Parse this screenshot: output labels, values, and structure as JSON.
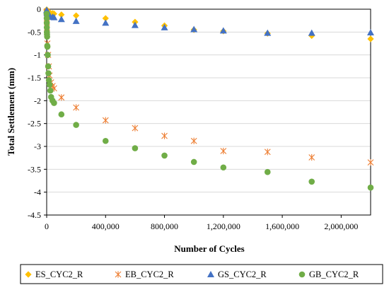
{
  "chart_data": {
    "type": "scatter",
    "title": "",
    "xlabel": "Number of Cycles",
    "ylabel": "Total Settlement (mm)",
    "xlim": [
      0,
      2200000
    ],
    "ylim": [
      -4.5,
      0
    ],
    "xticks": [
      0,
      400000,
      800000,
      1200000,
      1600000,
      2000000
    ],
    "xtick_labels": [
      "0",
      "400,000",
      "800,000",
      "1,200,000",
      "1,600,000",
      "2,000,000"
    ],
    "yticks": [
      0,
      -0.5,
      -1,
      -1.5,
      -2,
      -2.5,
      -3,
      -3.5,
      -4,
      -4.5
    ],
    "ytick_labels": [
      "0",
      "-0.5",
      "-1",
      "-1.5",
      "-2",
      "-2.5",
      "-3",
      "-3.5",
      "-4",
      "-4.5"
    ],
    "grid": "horizontal",
    "legend_position": "bottom",
    "series": [
      {
        "name": "ES_CYC2_R",
        "marker": "diamond",
        "color": "#FFC000",
        "points": [
          [
            100,
            -0.01
          ],
          [
            500,
            -0.02
          ],
          [
            1000,
            -0.03
          ],
          [
            2000,
            -0.04
          ],
          [
            5000,
            -0.05
          ],
          [
            10000,
            -0.06
          ],
          [
            20000,
            -0.07
          ],
          [
            40000,
            -0.09
          ],
          [
            50000,
            -0.1
          ],
          [
            100000,
            -0.12
          ],
          [
            200000,
            -0.14
          ],
          [
            400000,
            -0.2
          ],
          [
            600000,
            -0.28
          ],
          [
            800000,
            -0.36
          ],
          [
            1000000,
            -0.45
          ],
          [
            1200000,
            -0.48
          ],
          [
            1500000,
            -0.53
          ],
          [
            1800000,
            -0.58
          ],
          [
            2200000,
            -0.65
          ]
        ]
      },
      {
        "name": "EB_CYC2_R",
        "marker": "asterisk",
        "color": "#ED7D31",
        "points": [
          [
            100,
            -0.05
          ],
          [
            1000,
            -0.2
          ],
          [
            2000,
            -0.4
          ],
          [
            5000,
            -0.75
          ],
          [
            10000,
            -1.0
          ],
          [
            15000,
            -1.25
          ],
          [
            20000,
            -1.45
          ],
          [
            30000,
            -1.6
          ],
          [
            40000,
            -1.68
          ],
          [
            50000,
            -1.73
          ],
          [
            100000,
            -1.93
          ],
          [
            200000,
            -2.15
          ],
          [
            400000,
            -2.43
          ],
          [
            600000,
            -2.6
          ],
          [
            800000,
            -2.77
          ],
          [
            1000000,
            -2.88
          ],
          [
            1200000,
            -3.1
          ],
          [
            1500000,
            -3.12
          ],
          [
            1800000,
            -3.24
          ],
          [
            2200000,
            -3.35
          ]
        ]
      },
      {
        "name": "GS_CYC2_R",
        "marker": "triangle",
        "color": "#4472C4",
        "points": [
          [
            100,
            -0.02
          ],
          [
            1000,
            -0.05
          ],
          [
            2000,
            -0.08
          ],
          [
            5000,
            -0.1
          ],
          [
            10000,
            -0.12
          ],
          [
            20000,
            -0.14
          ],
          [
            40000,
            -0.17
          ],
          [
            50000,
            -0.18
          ],
          [
            100000,
            -0.22
          ],
          [
            200000,
            -0.26
          ],
          [
            400000,
            -0.3
          ],
          [
            600000,
            -0.35
          ],
          [
            800000,
            -0.4
          ],
          [
            1000000,
            -0.44
          ],
          [
            1200000,
            -0.47
          ],
          [
            1500000,
            -0.52
          ],
          [
            1800000,
            -0.52
          ],
          [
            2200000,
            -0.51
          ]
        ]
      },
      {
        "name": "GB_CYC2_R",
        "marker": "circle",
        "color": "#70AD47",
        "points": [
          [
            100,
            -0.1
          ],
          [
            300,
            -0.2
          ],
          [
            600,
            -0.3
          ],
          [
            1000,
            -0.4
          ],
          [
            1500,
            -0.5
          ],
          [
            2000,
            -0.55
          ],
          [
            3000,
            -0.6
          ],
          [
            4000,
            -0.8
          ],
          [
            5000,
            -0.82
          ],
          [
            7000,
            -1.0
          ],
          [
            10000,
            -1.25
          ],
          [
            12000,
            -1.4
          ],
          [
            15000,
            -1.55
          ],
          [
            20000,
            -1.65
          ],
          [
            25000,
            -1.78
          ],
          [
            30000,
            -1.92
          ],
          [
            40000,
            -2.0
          ],
          [
            50000,
            -2.05
          ],
          [
            100000,
            -2.3
          ],
          [
            200000,
            -2.53
          ],
          [
            400000,
            -2.88
          ],
          [
            600000,
            -3.04
          ],
          [
            800000,
            -3.2
          ],
          [
            1000000,
            -3.34
          ],
          [
            1200000,
            -3.46
          ],
          [
            1500000,
            -3.56
          ],
          [
            1800000,
            -3.77
          ],
          [
            2200000,
            -3.9
          ]
        ]
      }
    ]
  }
}
